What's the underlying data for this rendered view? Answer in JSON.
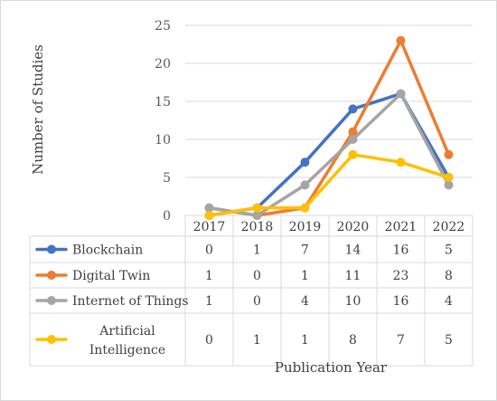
{
  "chart_data": {
    "type": "line",
    "title": "",
    "xlabel": "Publication Year",
    "ylabel": "Number of Studies",
    "ylim": [
      0,
      25
    ],
    "yticks": [
      0,
      5,
      10,
      15,
      20,
      25
    ],
    "grid": true,
    "legend": "data-table",
    "categories": [
      "2017",
      "2018",
      "2019",
      "2020",
      "2021",
      "2022"
    ],
    "series": [
      {
        "name": "Blockchain",
        "label_lines": [
          "Blockchain"
        ],
        "color": "#4472c4",
        "values": [
          0,
          1,
          7,
          14,
          16,
          5
        ]
      },
      {
        "name": "Digital Twin",
        "label_lines": [
          "Digital Twin"
        ],
        "color": "#ed7d31",
        "values": [
          1,
          0,
          1,
          11,
          23,
          8
        ]
      },
      {
        "name": "Internet of Things",
        "label_lines": [
          "Internet of Things"
        ],
        "color": "#a5a5a5",
        "values": [
          1,
          0,
          4,
          10,
          16,
          4
        ]
      },
      {
        "name": "Artificial Intelligence",
        "label_lines": [
          "Artificial",
          "Intelligence"
        ],
        "color": "#ffc000",
        "values": [
          0,
          1,
          1,
          8,
          7,
          5
        ]
      }
    ]
  }
}
